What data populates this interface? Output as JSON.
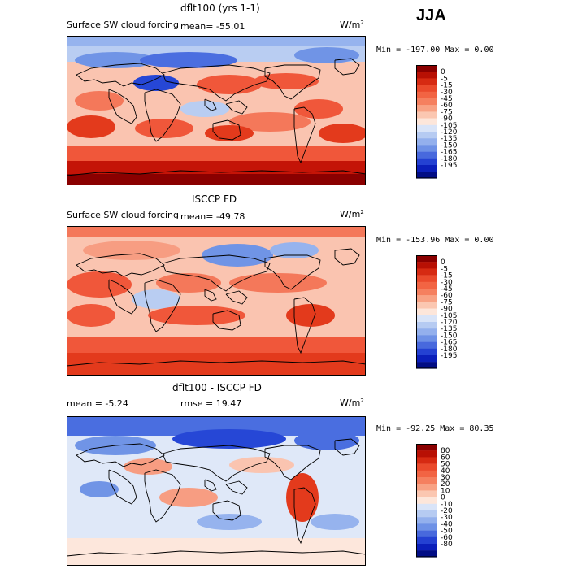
{
  "season": "JJA",
  "colors": {
    "warm": [
      "#8a0000",
      "#c41407",
      "#e33a1c",
      "#f0573a",
      "#f4785a",
      "#f79d82",
      "#fac4b0",
      "#fde7dc"
    ],
    "cool": [
      "#dfe8f8",
      "#b9cdf2",
      "#96b3ee",
      "#7094e6",
      "#4a6ee0",
      "#2647d6",
      "#0c22bc",
      "#020e85"
    ]
  },
  "panels": [
    {
      "title": "dflt100 (yrs 1-1)",
      "subtitle": "Surface SW cloud forcing",
      "mean_text": "mean= -55.01",
      "rmse_text": "",
      "units_base": "W/m",
      "units_exp": "2",
      "minmax": "Min = -197.00 Max =    0.00",
      "cbar_labels": [
        "0",
        "-5",
        "-15",
        "-30",
        "-45",
        "-60",
        "-75",
        "-90",
        "-105",
        "-120",
        "-135",
        "-150",
        "-165",
        "-180",
        "-195"
      ]
    },
    {
      "title": "ISCCP FD",
      "subtitle": "Surface SW cloud forcing",
      "mean_text": "mean= -49.78",
      "rmse_text": "",
      "units_base": "W/m",
      "units_exp": "2",
      "minmax": "Min = -153.96 Max =    0.00",
      "cbar_labels": [
        "0",
        "-5",
        "-15",
        "-30",
        "-45",
        "-60",
        "-75",
        "-90",
        "-105",
        "-120",
        "-135",
        "-150",
        "-165",
        "-180",
        "-195"
      ]
    },
    {
      "title": "dflt100 - ISCCP FD",
      "subtitle": "",
      "mean_text": "mean =   -5.24",
      "rmse_text": "rmse =   19.47",
      "units_base": "W/m",
      "units_exp": "2",
      "minmax": "Min = -92.25 Max =  80.35",
      "cbar_labels": [
        "80",
        "60",
        "50",
        "40",
        "30",
        "20",
        "10",
        "0",
        "-10",
        "-20",
        "-30",
        "-40",
        "-50",
        "-60",
        "-80"
      ]
    }
  ],
  "chart_data": [
    {
      "type": "heatmap",
      "title": "dflt100 (yrs 1-1)",
      "subtitle": "Surface SW cloud forcing",
      "mean": -55.01,
      "min": -197.0,
      "max": 0.0,
      "units": "W/m2",
      "colorbar_levels": [
        0,
        -5,
        -15,
        -30,
        -45,
        -60,
        -75,
        -90,
        -105,
        -120,
        -135,
        -150,
        -165,
        -180,
        -195
      ]
    },
    {
      "type": "heatmap",
      "title": "ISCCP FD",
      "subtitle": "Surface SW cloud forcing",
      "mean": -49.78,
      "min": -153.96,
      "max": 0.0,
      "units": "W/m2",
      "colorbar_levels": [
        0,
        -5,
        -15,
        -30,
        -45,
        -60,
        -75,
        -90,
        -105,
        -120,
        -135,
        -150,
        -165,
        -180,
        -195
      ]
    },
    {
      "type": "heatmap",
      "title": "dflt100 - ISCCP FD",
      "mean": -5.24,
      "rmse": 19.47,
      "min": -92.25,
      "max": 80.35,
      "units": "W/m2",
      "colorbar_levels": [
        80,
        60,
        50,
        40,
        30,
        20,
        10,
        0,
        -10,
        -20,
        -30,
        -40,
        -50,
        -60,
        -80
      ]
    }
  ]
}
